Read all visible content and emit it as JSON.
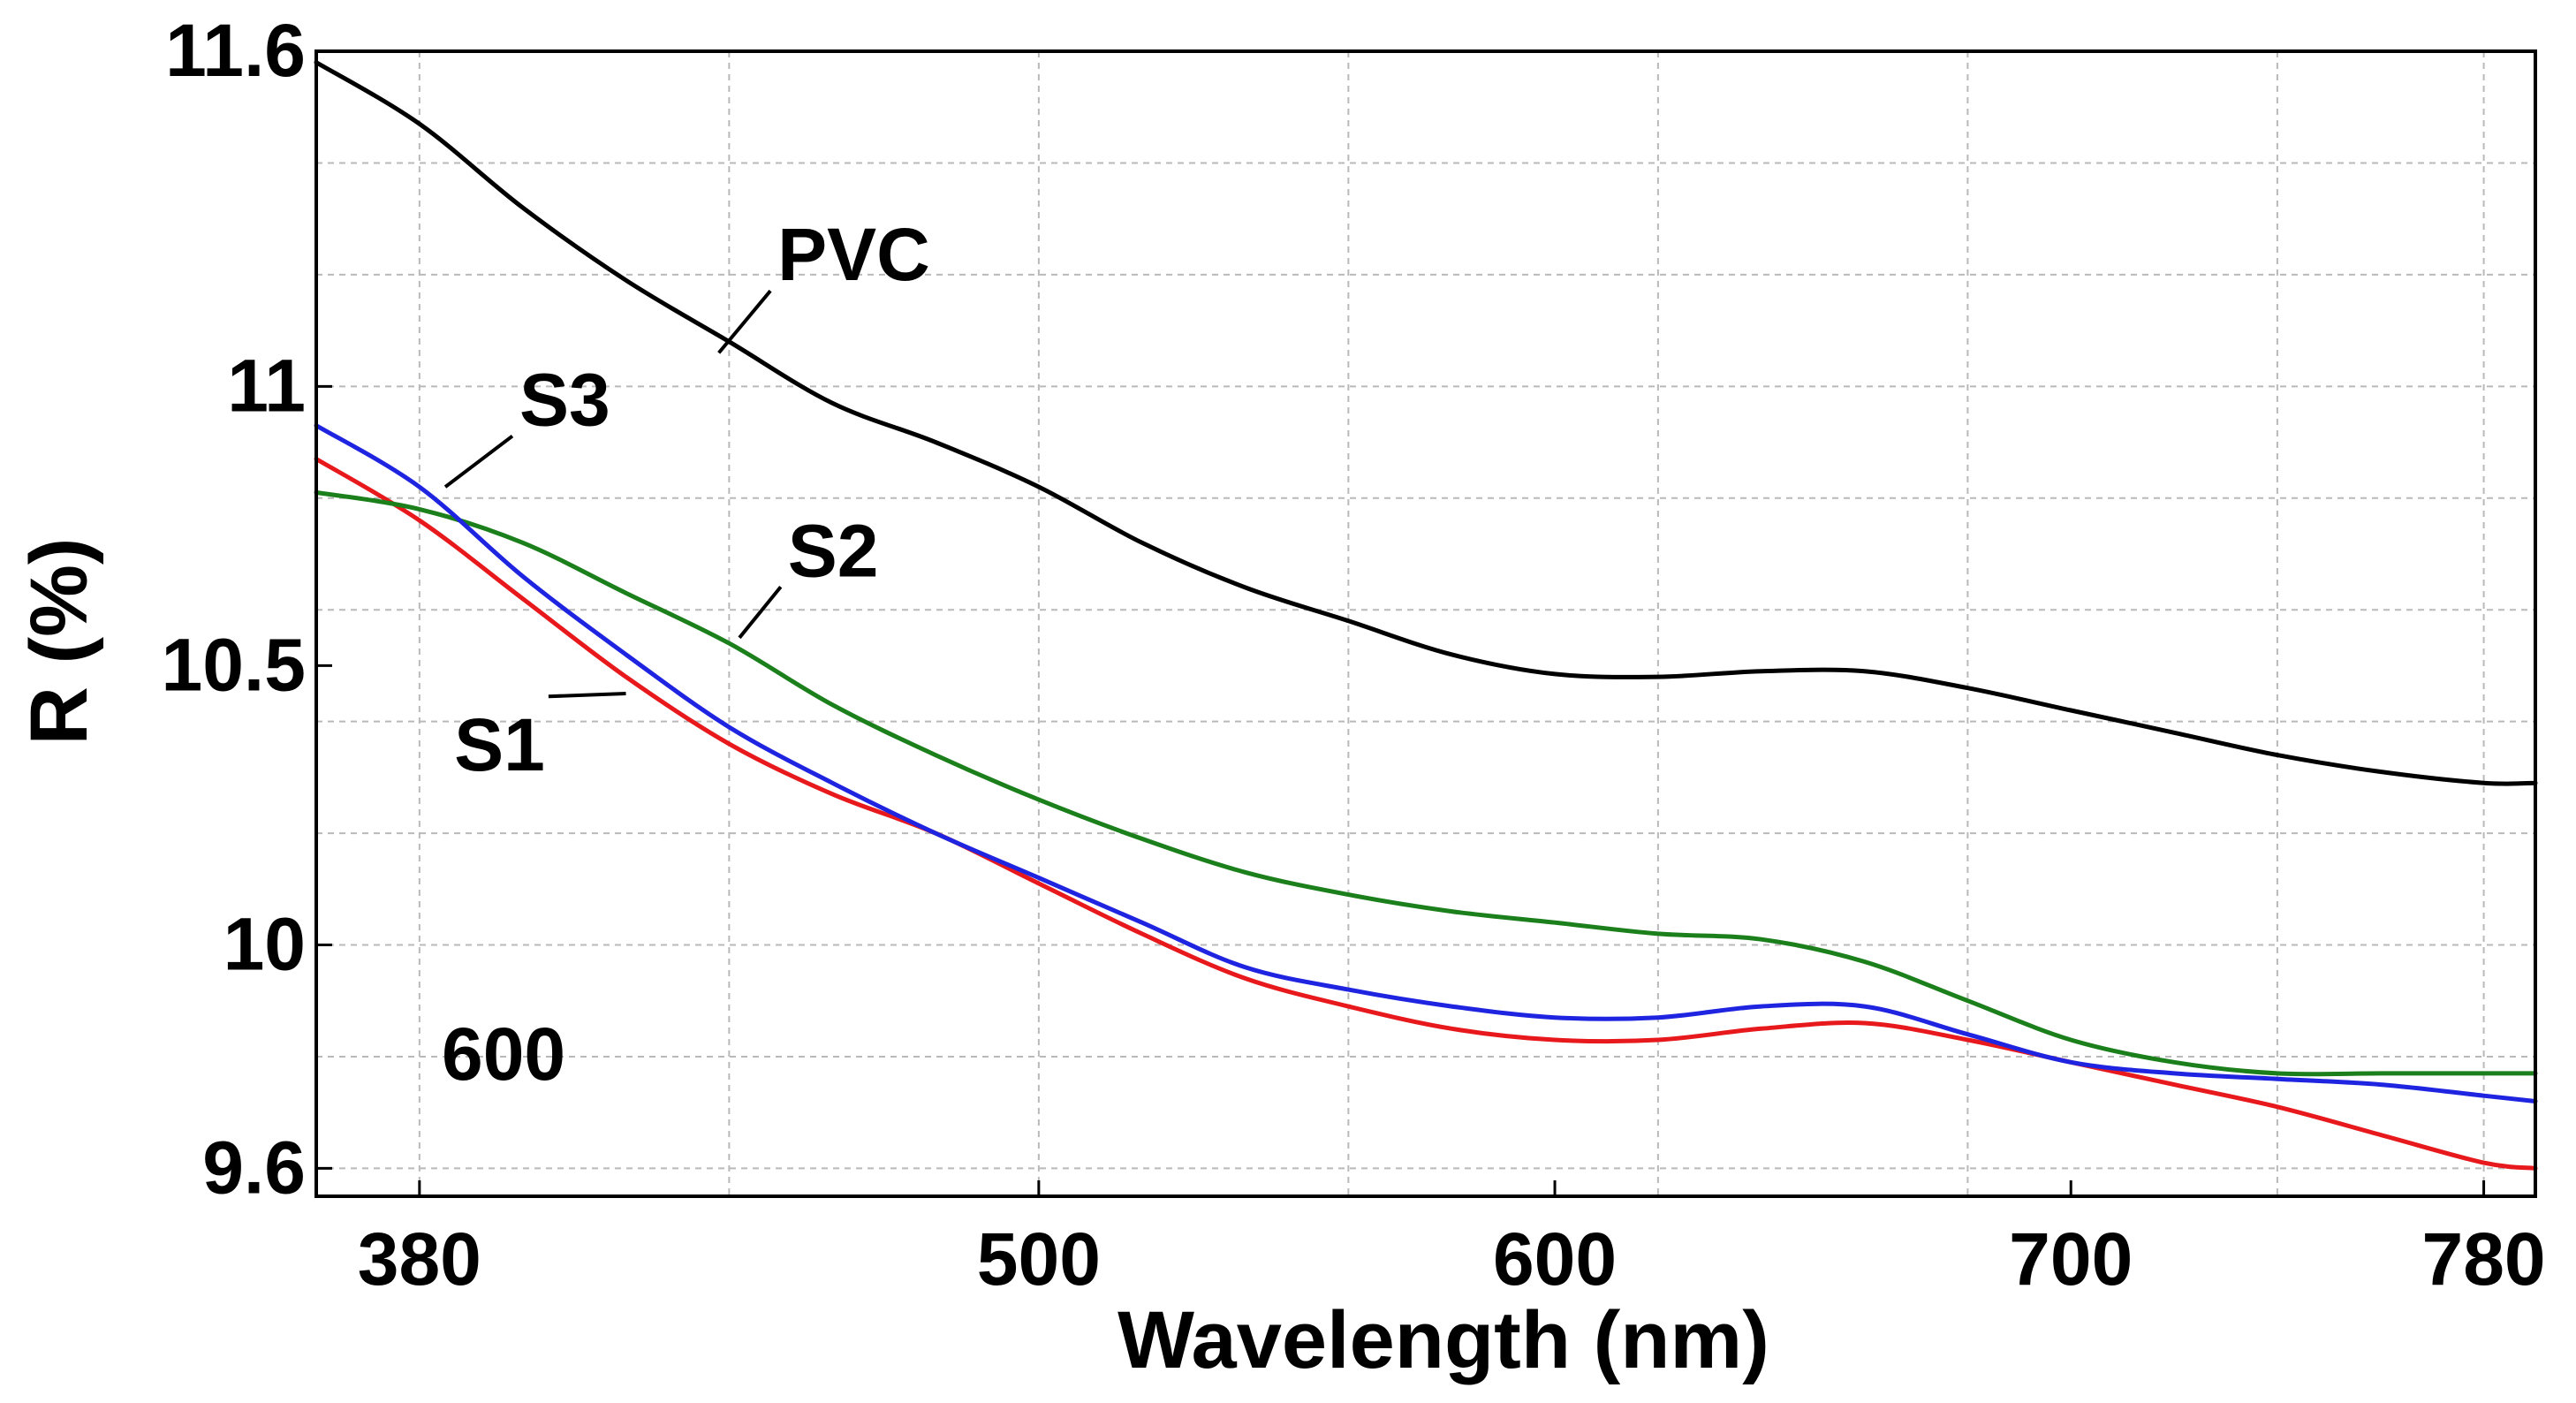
{
  "chart_data": {
    "type": "line",
    "title": "",
    "xlabel": "Wavelength (nm)",
    "ylabel": "R (%)",
    "xlim": [
      360,
      790
    ],
    "ylim": [
      9.55,
      11.6
    ],
    "xticks": [
      380,
      500,
      600,
      700,
      780
    ],
    "yticks": [
      9.6,
      10,
      10.5,
      11,
      11.6
    ],
    "ytick_labels": [
      "9.6",
      "10",
      "10.5",
      "11",
      "11.6"
    ],
    "grid": true,
    "annotation": "600",
    "series": [
      {
        "name": "PVC",
        "color": "#000000",
        "x": [
          360,
          380,
          400,
          420,
          440,
          460,
          480,
          500,
          520,
          540,
          560,
          580,
          600,
          620,
          640,
          660,
          680,
          700,
          720,
          740,
          760,
          780,
          790
        ],
        "y": [
          11.58,
          11.47,
          11.32,
          11.19,
          11.08,
          10.97,
          10.9,
          10.82,
          10.72,
          10.64,
          10.58,
          10.52,
          10.485,
          10.48,
          10.49,
          10.49,
          10.46,
          10.42,
          10.38,
          10.34,
          10.31,
          10.29,
          10.29
        ]
      },
      {
        "name": "S1",
        "color": "#e8191c",
        "x": [
          360,
          380,
          400,
          420,
          440,
          460,
          480,
          500,
          520,
          540,
          560,
          580,
          600,
          620,
          640,
          660,
          680,
          700,
          720,
          740,
          760,
          780,
          790
        ],
        "y": [
          10.87,
          10.76,
          10.62,
          10.48,
          10.36,
          10.27,
          10.2,
          10.11,
          10.02,
          9.94,
          9.89,
          9.85,
          9.83,
          9.83,
          9.85,
          9.86,
          9.83,
          9.79,
          9.75,
          9.71,
          9.66,
          9.61,
          9.6
        ]
      },
      {
        "name": "S2",
        "color": "#1b7f1b",
        "x": [
          360,
          380,
          400,
          420,
          440,
          460,
          480,
          500,
          520,
          540,
          560,
          580,
          600,
          620,
          640,
          660,
          680,
          700,
          720,
          740,
          760,
          780,
          790
        ],
        "y": [
          10.81,
          10.78,
          10.72,
          10.63,
          10.54,
          10.43,
          10.34,
          10.26,
          10.19,
          10.13,
          10.09,
          10.06,
          10.04,
          10.02,
          10.01,
          9.97,
          9.9,
          9.83,
          9.79,
          9.77,
          9.77,
          9.77,
          9.77
        ]
      },
      {
        "name": "S3",
        "color": "#1f24e0",
        "x": [
          360,
          380,
          400,
          420,
          440,
          460,
          480,
          500,
          520,
          540,
          560,
          580,
          600,
          620,
          640,
          660,
          680,
          700,
          720,
          740,
          760,
          780,
          790
        ],
        "y": [
          10.93,
          10.82,
          10.66,
          10.52,
          10.39,
          10.29,
          10.2,
          10.12,
          10.04,
          9.96,
          9.92,
          9.89,
          9.87,
          9.87,
          9.89,
          9.89,
          9.84,
          9.79,
          9.77,
          9.76,
          9.75,
          9.73,
          9.72
        ]
      }
    ],
    "labels": [
      {
        "text": "PVC",
        "series": "PVC",
        "at_x": 438,
        "at_y": 11.06,
        "text_x": 448,
        "text_y": 11.19
      },
      {
        "text": "S3",
        "series": "S3",
        "at_x": 385,
        "at_y": 10.82,
        "text_x": 398,
        "text_y": 10.93
      },
      {
        "text": "S2",
        "series": "S2",
        "at_x": 442,
        "at_y": 10.55,
        "text_x": 450,
        "text_y": 10.66
      },
      {
        "text": "S1",
        "series": "S1",
        "at_x": 420,
        "at_y": 10.45,
        "text_x": 405,
        "text_y": 10.35
      }
    ]
  }
}
